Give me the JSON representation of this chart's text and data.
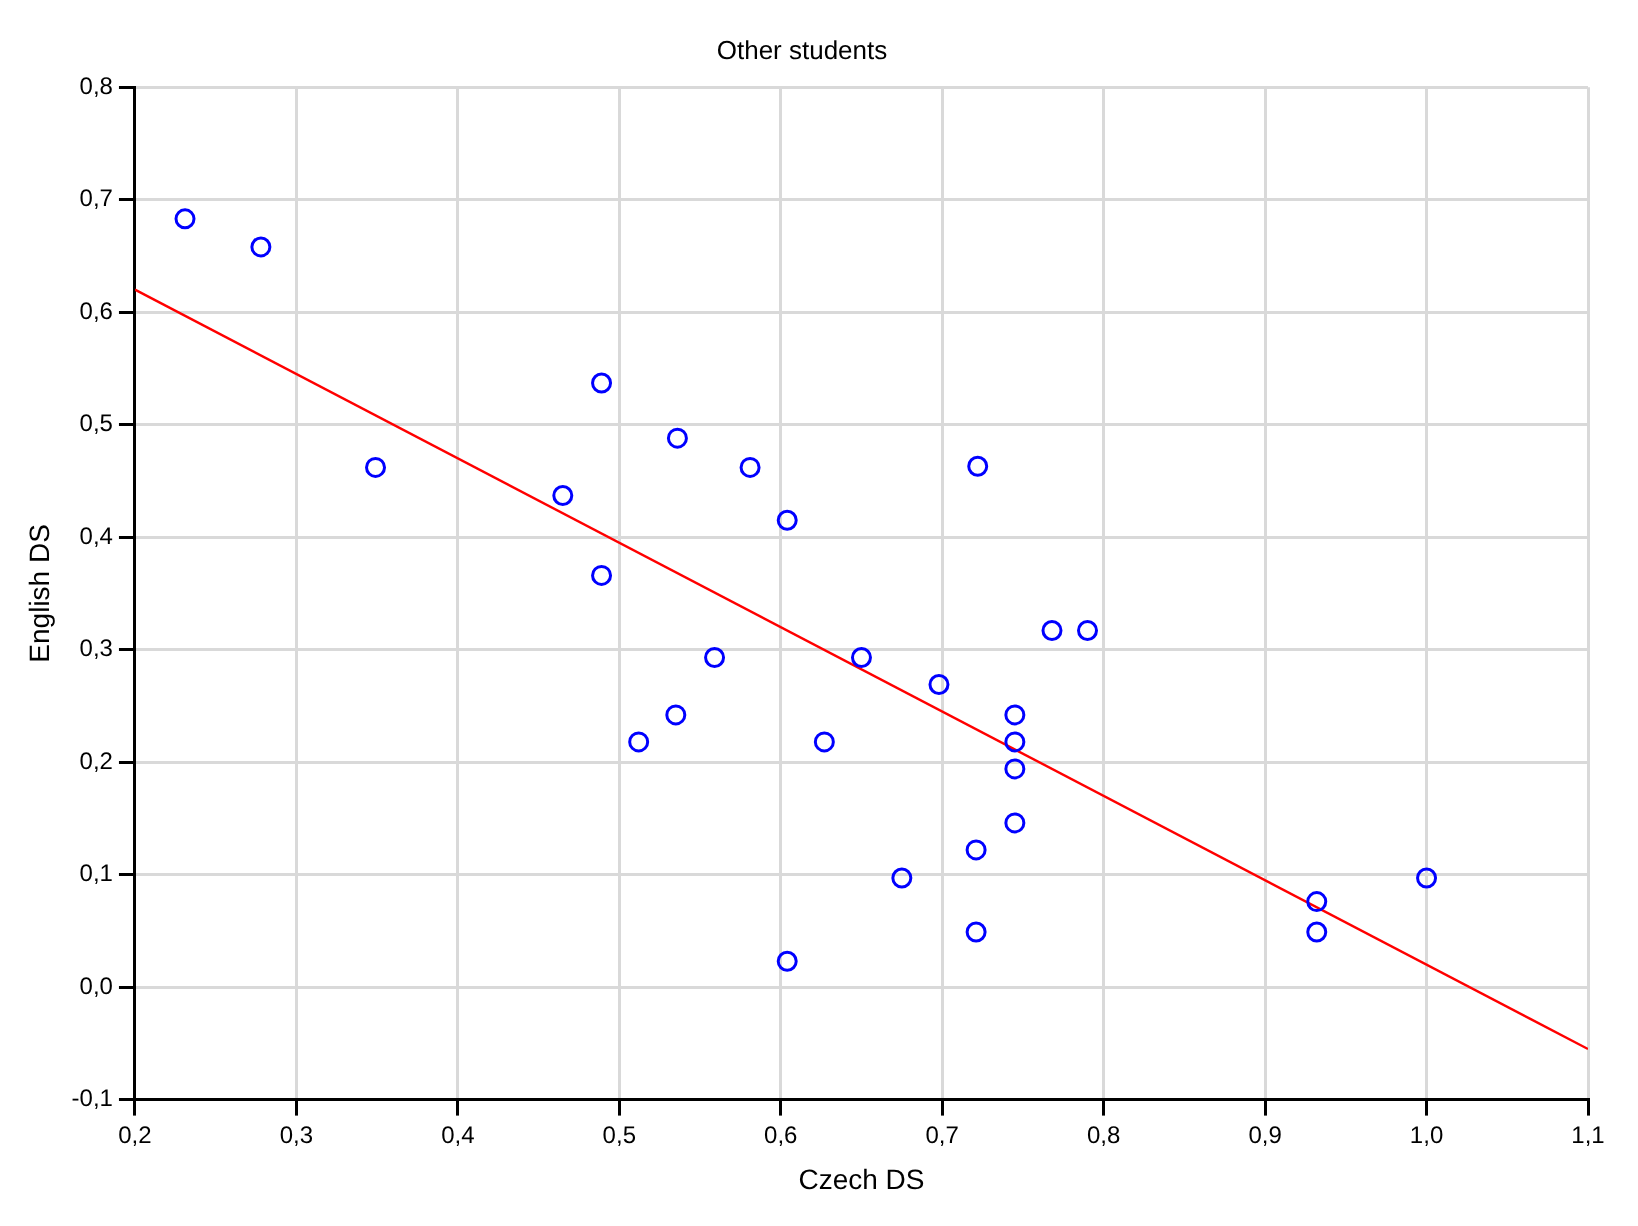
{
  "chart_data": {
    "type": "scatter",
    "title": "Other students",
    "xlabel": "Czech DS",
    "ylabel": "English DS",
    "xlim": [
      0.2,
      1.1
    ],
    "ylim": [
      -0.1,
      0.8
    ],
    "xticks": [
      {
        "value": 0.2,
        "label": "0,2"
      },
      {
        "value": 0.3,
        "label": "0,3"
      },
      {
        "value": 0.4,
        "label": "0,4"
      },
      {
        "value": 0.5,
        "label": "0,5"
      },
      {
        "value": 0.6,
        "label": "0,6"
      },
      {
        "value": 0.7,
        "label": "0,7"
      },
      {
        "value": 0.8,
        "label": "0,8"
      },
      {
        "value": 0.9,
        "label": "0,9"
      },
      {
        "value": 1.0,
        "label": "1,0"
      },
      {
        "value": 1.1,
        "label": "1,1"
      }
    ],
    "yticks": [
      {
        "value": -0.1,
        "label": "-0,1"
      },
      {
        "value": 0,
        "label": "0,0"
      },
      {
        "value": 0.1,
        "label": "0,1"
      },
      {
        "value": 0.2,
        "label": "0,2"
      },
      {
        "value": 0.3,
        "label": "0,3"
      },
      {
        "value": 0.4,
        "label": "0,4"
      },
      {
        "value": 0.5,
        "label": "0,5"
      },
      {
        "value": 0.6,
        "label": "0,6"
      },
      {
        "value": 0.7,
        "label": "0,7"
      },
      {
        "value": 0.8,
        "label": "0,8"
      }
    ],
    "grid": true,
    "legend": false,
    "marker": "circle",
    "series": [
      {
        "color": "#0000ff",
        "x": [
          0.231,
          0.278,
          0.349,
          0.465,
          0.489,
          0.489,
          0.536,
          0.581,
          0.604,
          0.722,
          0.768,
          0.79,
          0.65,
          0.698,
          0.627,
          0.745,
          0.745,
          0.745,
          0.745,
          0.721,
          0.675,
          0.721,
          0.604,
          0.932,
          0.932,
          1.0,
          0.559,
          0.535,
          0.512
        ],
        "values": [
          0.683,
          0.658,
          0.462,
          0.437,
          0.537,
          0.366,
          0.488,
          0.462,
          0.415,
          0.463,
          0.317,
          0.317,
          0.293,
          0.269,
          0.218,
          0.242,
          0.218,
          0.194,
          0.146,
          0.122,
          0.097,
          0.049,
          0.023,
          0.076,
          0.049,
          0.097,
          0.293,
          0.242,
          0.218
        ]
      },
      {
        "type": "line",
        "color": "#ff0000",
        "marker": "none",
        "line_style": "solid",
        "x": [
          0.2,
          1.1
        ],
        "values": [
          0.62,
          -0.055
        ]
      }
    ]
  }
}
